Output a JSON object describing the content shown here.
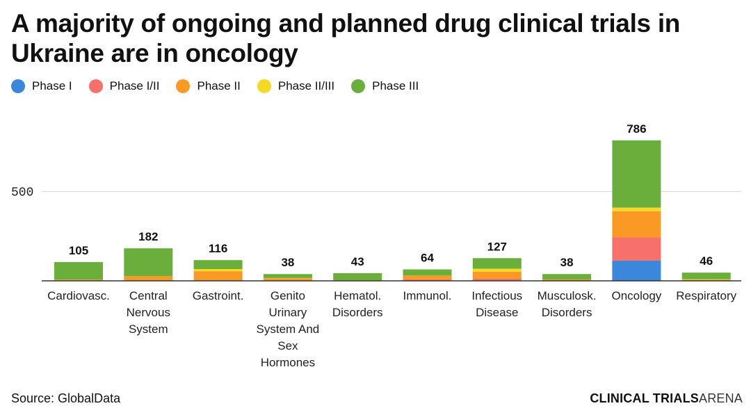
{
  "title": "A majority of ongoing and planned drug clinical trials in Ukraine are in oncology",
  "source": "Source: GlobalData",
  "brand": {
    "bold": "CLINICAL TRIALS",
    "light": "ARENA"
  },
  "chart_data": {
    "type": "bar",
    "stacked": true,
    "categories": [
      "Cardiovasc.",
      "Central Nervous System",
      "Gastroint.",
      "Genito Urinary System And Sex Hormones",
      "Hematol. Disorders",
      "Immunol.",
      "Infectious Disease",
      "Musculosk. Disorders",
      "Oncology",
      "Respiratory"
    ],
    "totals": [
      105,
      182,
      116,
      38,
      43,
      64,
      127,
      38,
      786,
      46
    ],
    "series": [
      {
        "name": "Phase I",
        "color": "#3b87dc",
        "values": [
          0,
          0,
          0,
          0,
          0,
          0,
          0,
          0,
          113,
          0
        ]
      },
      {
        "name": "Phase I/II",
        "color": "#f7716a",
        "values": [
          2,
          2,
          2,
          1,
          1,
          8,
          12,
          0,
          130,
          0
        ]
      },
      {
        "name": "Phase II",
        "color": "#fa9a24",
        "values": [
          5,
          24,
          52,
          14,
          3,
          22,
          39,
          8,
          147,
          6
        ]
      },
      {
        "name": "Phase II/III",
        "color": "#f6d924",
        "values": [
          0,
          0,
          12,
          1,
          0,
          0,
          17,
          0,
          20,
          3
        ]
      },
      {
        "name": "Phase III",
        "color": "#6aaf3c",
        "values": [
          98,
          156,
          50,
          22,
          39,
          34,
          59,
          30,
          376,
          37
        ]
      }
    ],
    "yticks": [
      500
    ],
    "ylim": [
      0,
      786
    ],
    "xlabel": "",
    "ylabel": "",
    "grid": true,
    "legend": "top-left"
  }
}
